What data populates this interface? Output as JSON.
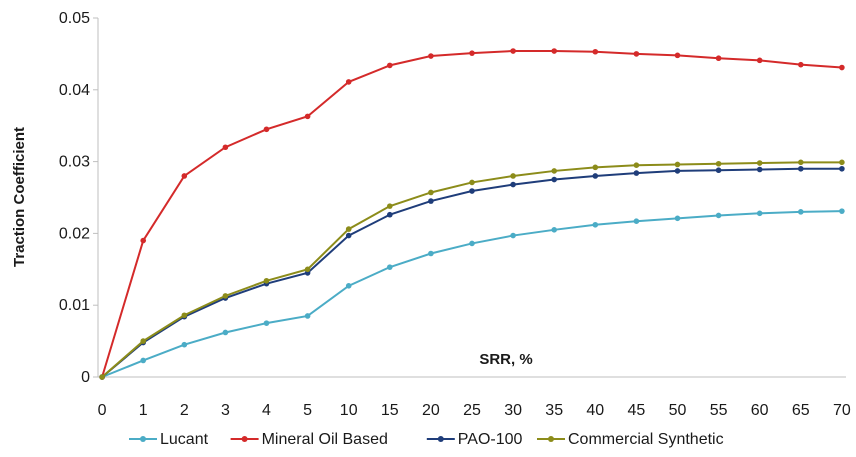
{
  "chart_data": {
    "type": "line",
    "title": "",
    "xlabel": "SRR, %",
    "ylabel": "Traction Coefficient",
    "categories": [
      "0",
      "1",
      "2",
      "3",
      "4",
      "5",
      "10",
      "15",
      "20",
      "25",
      "30",
      "35",
      "40",
      "45",
      "50",
      "55",
      "60",
      "65",
      "70"
    ],
    "ylim": [
      0,
      0.05
    ],
    "yticks": [
      "0",
      "0.01",
      "0.02",
      "0.03",
      "0.04",
      "0.05"
    ],
    "grid": false,
    "legend_position": "bottom",
    "series": [
      {
        "name": "Lucant",
        "color": "#4bacc6",
        "values": [
          0,
          0.0023,
          0.0045,
          0.0062,
          0.0075,
          0.0085,
          0.0127,
          0.0153,
          0.0172,
          0.0186,
          0.0197,
          0.0205,
          0.0212,
          0.0217,
          0.0221,
          0.0225,
          0.0228,
          0.023,
          0.0231
        ]
      },
      {
        "name": "Mineral Oil Based",
        "color": "#d42a2a",
        "values": [
          0,
          0.019,
          0.028,
          0.032,
          0.0345,
          0.0363,
          0.0411,
          0.0434,
          0.0447,
          0.0451,
          0.0454,
          0.0454,
          0.0453,
          0.045,
          0.0448,
          0.0444,
          0.0441,
          0.0435,
          0.0431
        ]
      },
      {
        "name": "PAO-100",
        "color": "#1f3d7a",
        "values": [
          0,
          0.0048,
          0.0084,
          0.011,
          0.013,
          0.0145,
          0.0197,
          0.0226,
          0.0245,
          0.0259,
          0.0268,
          0.0275,
          0.028,
          0.0284,
          0.0287,
          0.0288,
          0.0289,
          0.029,
          0.029
        ]
      },
      {
        "name": "Commercial Synthetic",
        "color": "#8c8c1a",
        "values": [
          0,
          0.005,
          0.0086,
          0.0113,
          0.0134,
          0.015,
          0.0206,
          0.0238,
          0.0257,
          0.0271,
          0.028,
          0.0287,
          0.0292,
          0.0295,
          0.0296,
          0.0297,
          0.0298,
          0.0299,
          0.0299
        ]
      }
    ]
  }
}
